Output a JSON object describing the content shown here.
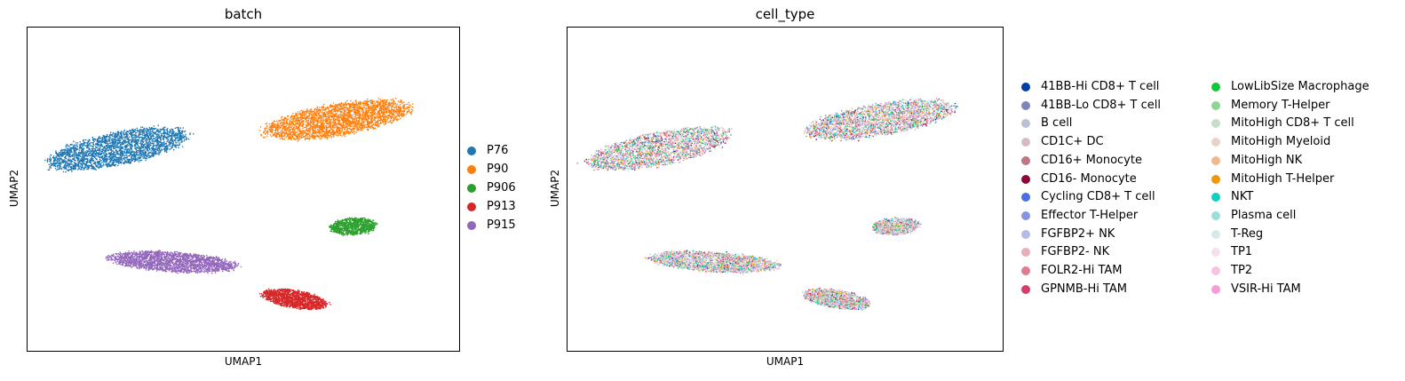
{
  "chart_data": [
    {
      "type": "scatter",
      "title": "batch",
      "xlabel": "UMAP1",
      "ylabel": "UMAP2",
      "grid": false,
      "legend_position": "right",
      "series": [
        {
          "name": "P76",
          "color": "#1f77b4",
          "cluster": {
            "cx": 0.18,
            "cy": 0.25,
            "rx": 0.09,
            "ry": 0.2,
            "angle": -58,
            "n": 2600
          }
        },
        {
          "name": "P90",
          "color": "#ff7f0e",
          "cluster": {
            "cx": 0.74,
            "cy": 0.43,
            "rx": 0.2,
            "ry": 0.09,
            "angle": 27,
            "n": 2800
          }
        },
        {
          "name": "P906",
          "color": "#2ca02c",
          "cluster": {
            "cx": 0.78,
            "cy": -0.23,
            "rx": 0.06,
            "ry": 0.05,
            "angle": 25,
            "n": 900
          }
        },
        {
          "name": "P913",
          "color": "#d62728",
          "cluster": {
            "cx": 0.63,
            "cy": -0.68,
            "rx": 0.09,
            "ry": 0.05,
            "angle": -30,
            "n": 1400
          }
        },
        {
          "name": "P915",
          "color": "#9467bd",
          "cluster": {
            "cx": 0.32,
            "cy": -0.45,
            "rx": 0.16,
            "ry": 0.06,
            "angle": -10,
            "n": 2200
          }
        }
      ]
    },
    {
      "type": "scatter",
      "title": "cell_type",
      "xlabel": "UMAP1",
      "ylabel": "UMAP2",
      "grid": false,
      "legend_position": "right",
      "clusters": [
        {
          "cx": 0.18,
          "cy": 0.25,
          "rx": 0.09,
          "ry": 0.2,
          "angle": -58,
          "n": 2600
        },
        {
          "cx": 0.74,
          "cy": 0.43,
          "rx": 0.2,
          "ry": 0.09,
          "angle": 27,
          "n": 2800
        },
        {
          "cx": 0.78,
          "cy": -0.23,
          "rx": 0.06,
          "ry": 0.05,
          "angle": 25,
          "n": 900
        },
        {
          "cx": 0.63,
          "cy": -0.68,
          "rx": 0.09,
          "ry": 0.05,
          "angle": -30,
          "n": 1400
        },
        {
          "cx": 0.32,
          "cy": -0.45,
          "rx": 0.16,
          "ry": 0.06,
          "angle": -10,
          "n": 2200
        }
      ],
      "categories": [
        {
          "name": "41BB-Hi CD8+ T cell",
          "color": "#023fa5"
        },
        {
          "name": "41BB-Lo CD8+ T cell",
          "color": "#7d87b9"
        },
        {
          "name": "B cell",
          "color": "#bec1d4"
        },
        {
          "name": "CD1C+ DC",
          "color": "#d6bcc0"
        },
        {
          "name": "CD16+ Monocyte",
          "color": "#bb7784"
        },
        {
          "name": "CD16- Monocyte",
          "color": "#8e063b"
        },
        {
          "name": "Cycling CD8+ T cell",
          "color": "#4a6fe3"
        },
        {
          "name": "Effector T-Helper",
          "color": "#8595e1"
        },
        {
          "name": "FGFBP2+ NK",
          "color": "#b5bbe3"
        },
        {
          "name": "FGFBP2- NK",
          "color": "#e6afb9"
        },
        {
          "name": "FOLR2-Hi TAM",
          "color": "#e07b91"
        },
        {
          "name": "GPNMB-Hi TAM",
          "color": "#d33f6a"
        },
        {
          "name": "LowLibSize Macrophage",
          "color": "#11c638"
        },
        {
          "name": "Memory T-Helper",
          "color": "#8dd593"
        },
        {
          "name": "MitoHigh CD8+ T cell",
          "color": "#c6dec7"
        },
        {
          "name": "MitoHigh Myeloid",
          "color": "#ead3c6"
        },
        {
          "name": "MitoHigh NK",
          "color": "#f0b98d"
        },
        {
          "name": "MitoHigh T-Helper",
          "color": "#ef9708"
        },
        {
          "name": "NKT",
          "color": "#0fcfc0"
        },
        {
          "name": "Plasma cell",
          "color": "#9cded6"
        },
        {
          "name": "T-Reg",
          "color": "#d5eae7"
        },
        {
          "name": "TP1",
          "color": "#f3e1eb"
        },
        {
          "name": "TP2",
          "color": "#f6c4e1"
        },
        {
          "name": "VSIR-Hi TAM",
          "color": "#f79cd4"
        }
      ]
    }
  ]
}
